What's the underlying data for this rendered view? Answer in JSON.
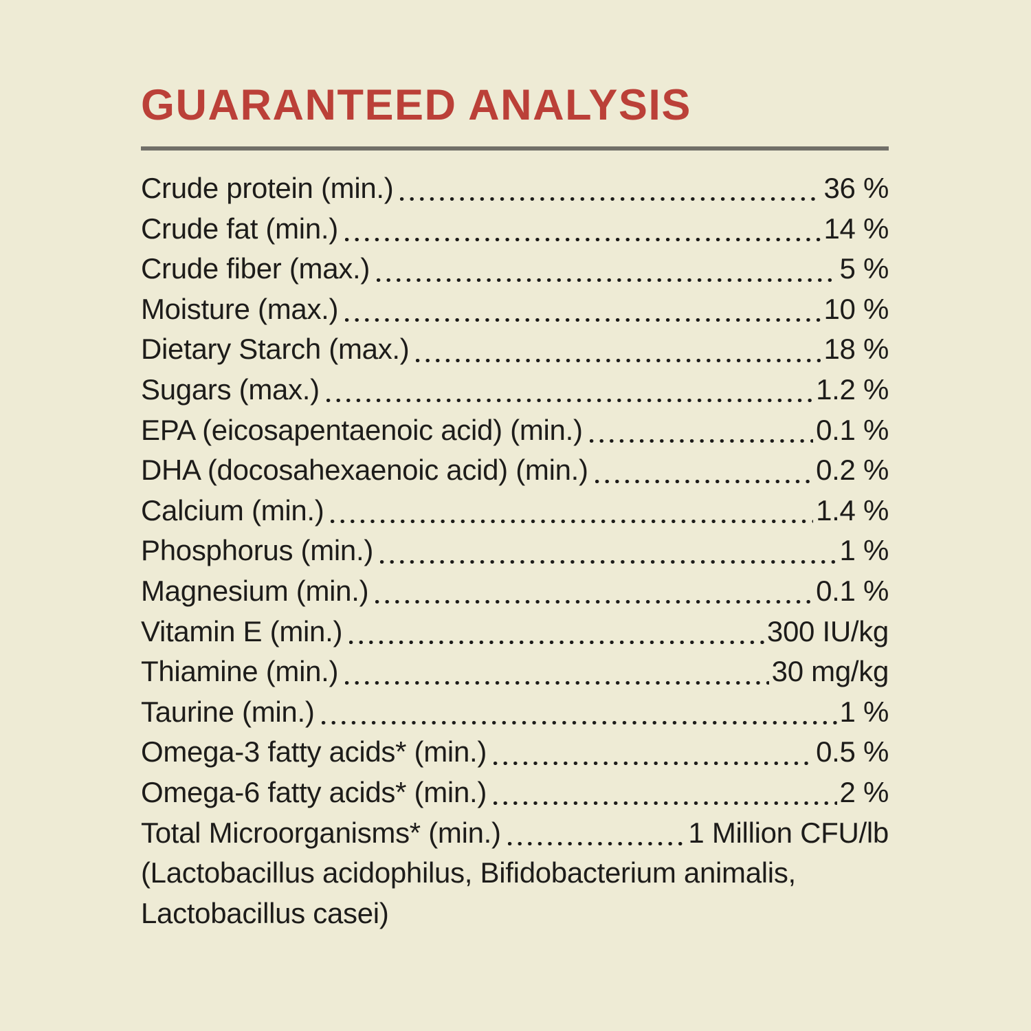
{
  "page": {
    "title": "GUARANTEED ANALYSIS",
    "colors": {
      "background": "#eeebd5",
      "title_red": "#bb4038",
      "rule_gray": "#716f68",
      "text": "#1d1c1a"
    }
  },
  "rows": [
    {
      "label": "Crude protein (min.)",
      "value": "36 %"
    },
    {
      "label": "Crude fat (min.)",
      "value": "14 %"
    },
    {
      "label": "Crude fiber (max.)",
      "value": "5 %"
    },
    {
      "label": "Moisture (max.)",
      "value": "10 %"
    },
    {
      "label": "Dietary Starch (max.)",
      "value": "18 %"
    },
    {
      "label": "Sugars (max.)",
      "value": "1.2 %"
    },
    {
      "label": "EPA (eicosapentaenoic acid) (min.)",
      "value": "0.1 %"
    },
    {
      "label": "DHA (docosahexaenoic acid) (min.)",
      "value": "0.2 %"
    },
    {
      "label": "Calcium (min.)",
      "value": "1.4 %"
    },
    {
      "label": "Phosphorus (min.)",
      "value": "1 %"
    },
    {
      "label": "Magnesium (min.)",
      "value": "0.1 %"
    },
    {
      "label": "Vitamin E (min.)",
      "value": "300 IU/kg"
    },
    {
      "label": "Thiamine (min.)",
      "value": "30 mg/kg"
    },
    {
      "label": "Taurine (min.)",
      "value": "1 %"
    },
    {
      "label": "Omega-3 fatty acids* (min.)",
      "value": "0.5 %"
    },
    {
      "label": "Omega-6 fatty acids* (min.)",
      "value": "2 %"
    },
    {
      "label": "Total Microorganisms* (min.)",
      "value": "1 Million CFU/lb"
    }
  ],
  "footnote_lines": [
    "(Lactobacillus acidophilus, Bifidobacterium animalis,",
    "Lactobacillus casei)"
  ]
}
